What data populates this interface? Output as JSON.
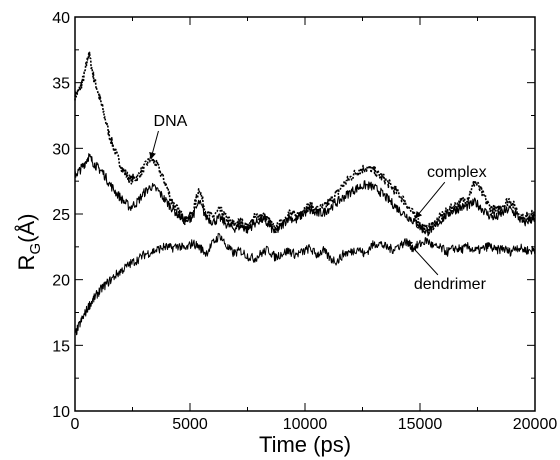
{
  "chart_data": {
    "type": "line",
    "title": "",
    "xlabel": "Time (ps)",
    "ylabel_main": "R",
    "ylabel_sub": "G",
    "ylabel_unit": "(Å)",
    "xlim": [
      0,
      20000
    ],
    "ylim": [
      10,
      40
    ],
    "xticks": [
      0,
      5000,
      10000,
      15000,
      20000
    ],
    "yticks": [
      10,
      15,
      20,
      25,
      30,
      35,
      40
    ],
    "grid": false,
    "legend": "none",
    "annotations": [
      {
        "label": "DNA",
        "text_at": [
          4150,
          31.7
        ],
        "arrow_to": [
          3300,
          29.2
        ]
      },
      {
        "label": "complex",
        "text_at": [
          16600,
          27.8
        ],
        "arrow_to": [
          14800,
          24.7
        ]
      },
      {
        "label": "dendrimer",
        "text_at": [
          16300,
          19.3
        ],
        "arrow_to": [
          14400,
          23.0
        ]
      }
    ],
    "series": [
      {
        "name": "DNA",
        "color": "#000000",
        "x": [
          0,
          200,
          400,
          600,
          800,
          1000,
          1200,
          1500,
          1800,
          2100,
          2400,
          2700,
          3000,
          3300,
          3600,
          3900,
          4200,
          4500,
          4800,
          5100,
          5400,
          5700,
          6000,
          6300,
          6600,
          6900,
          7200,
          7500,
          7800,
          8100,
          8400,
          8700,
          9000,
          9300,
          9600,
          9900,
          10200,
          10500,
          10800,
          11100,
          11400,
          11700,
          12000,
          12300,
          12600,
          12900,
          13200,
          13500,
          13800,
          14100,
          14400,
          14700,
          15000,
          15300,
          15600,
          15900,
          16200,
          16500,
          16800,
          17100,
          17400,
          17700,
          18000,
          18300,
          18600,
          18900,
          19200,
          19500,
          19800,
          20000
        ],
        "y": [
          34.0,
          34.5,
          35.5,
          37.3,
          35.5,
          34.3,
          33.0,
          31.0,
          29.5,
          28.3,
          27.6,
          27.8,
          28.5,
          29.3,
          28.6,
          27.5,
          26.0,
          25.2,
          24.5,
          25.0,
          27.0,
          25.0,
          24.8,
          25.3,
          24.6,
          24.2,
          24.4,
          24.0,
          24.7,
          25.0,
          24.5,
          23.8,
          24.4,
          25.1,
          24.8,
          25.3,
          25.6,
          25.3,
          25.5,
          26.0,
          26.6,
          27.3,
          27.8,
          28.3,
          28.5,
          28.4,
          28.0,
          27.6,
          27.0,
          26.5,
          25.8,
          25.0,
          24.2,
          23.8,
          24.2,
          24.8,
          25.2,
          25.6,
          25.9,
          26.3,
          27.5,
          26.6,
          25.6,
          25.2,
          25.7,
          26.1,
          25.3,
          24.6,
          25.0,
          24.8
        ]
      },
      {
        "name": "complex",
        "color": "#000000",
        "x": [
          0,
          200,
          400,
          600,
          800,
          1000,
          1200,
          1500,
          1800,
          2100,
          2400,
          2700,
          3000,
          3300,
          3600,
          3900,
          4200,
          4500,
          4800,
          5100,
          5400,
          5700,
          6000,
          6300,
          6600,
          6900,
          7200,
          7500,
          7800,
          8100,
          8400,
          8700,
          9000,
          9300,
          9600,
          9900,
          10200,
          10500,
          10800,
          11100,
          11400,
          11700,
          12000,
          12300,
          12600,
          12900,
          13200,
          13500,
          13800,
          14100,
          14400,
          14700,
          15000,
          15300,
          15600,
          15900,
          16200,
          16500,
          16800,
          17100,
          17400,
          17700,
          18000,
          18300,
          18600,
          18900,
          19200,
          19500,
          19800,
          20000
        ],
        "y": [
          28.0,
          28.3,
          28.8,
          29.4,
          28.9,
          28.5,
          28.2,
          27.3,
          26.6,
          26.0,
          25.5,
          25.9,
          26.6,
          27.1,
          26.8,
          26.1,
          25.5,
          24.9,
          24.5,
          24.8,
          25.9,
          24.8,
          24.4,
          24.7,
          24.2,
          23.9,
          24.1,
          23.8,
          24.3,
          24.6,
          24.2,
          23.6,
          24.1,
          24.8,
          24.5,
          25.0,
          25.3,
          25.0,
          25.1,
          25.5,
          25.9,
          26.3,
          26.7,
          27.0,
          27.2,
          27.1,
          26.8,
          26.3,
          25.8,
          25.3,
          24.9,
          24.5,
          24.0,
          23.6,
          24.0,
          24.5,
          25.0,
          25.3,
          25.5,
          25.6,
          25.9,
          25.4,
          24.9,
          24.7,
          25.1,
          25.4,
          24.9,
          24.3,
          24.6,
          24.5
        ]
      },
      {
        "name": "dendrimer",
        "color": "#000000",
        "x": [
          0,
          200,
          400,
          600,
          800,
          1000,
          1200,
          1500,
          1800,
          2100,
          2400,
          2700,
          3000,
          3300,
          3600,
          3900,
          4200,
          4500,
          4800,
          5100,
          5400,
          5700,
          6000,
          6300,
          6600,
          6900,
          7200,
          7500,
          7800,
          8100,
          8400,
          8700,
          9000,
          9300,
          9600,
          9900,
          10200,
          10500,
          10800,
          11100,
          11400,
          11700,
          12000,
          12300,
          12600,
          12900,
          13200,
          13500,
          13800,
          14100,
          14400,
          14700,
          15000,
          15300,
          15600,
          15900,
          16200,
          16500,
          16800,
          17100,
          17400,
          17700,
          18000,
          18300,
          18600,
          18900,
          19200,
          19500,
          19800,
          20000
        ],
        "y": [
          15.8,
          16.6,
          17.3,
          18.0,
          18.5,
          19.0,
          19.4,
          19.9,
          20.4,
          20.8,
          21.2,
          21.5,
          21.9,
          22.1,
          22.3,
          22.5,
          22.4,
          22.6,
          22.3,
          22.8,
          22.5,
          22.0,
          22.8,
          23.4,
          22.5,
          22.0,
          22.2,
          21.8,
          21.6,
          22.0,
          22.3,
          21.7,
          22.0,
          22.2,
          21.9,
          22.1,
          22.4,
          21.9,
          22.2,
          21.6,
          21.4,
          22.0,
          22.1,
          22.4,
          21.9,
          22.6,
          22.8,
          22.5,
          22.3,
          22.6,
          22.9,
          22.4,
          22.7,
          23.0,
          22.5,
          22.4,
          22.1,
          22.4,
          22.3,
          22.5,
          22.2,
          22.3,
          22.6,
          22.2,
          22.4,
          22.1,
          22.5,
          22.3,
          22.2,
          22.3
        ]
      }
    ]
  }
}
